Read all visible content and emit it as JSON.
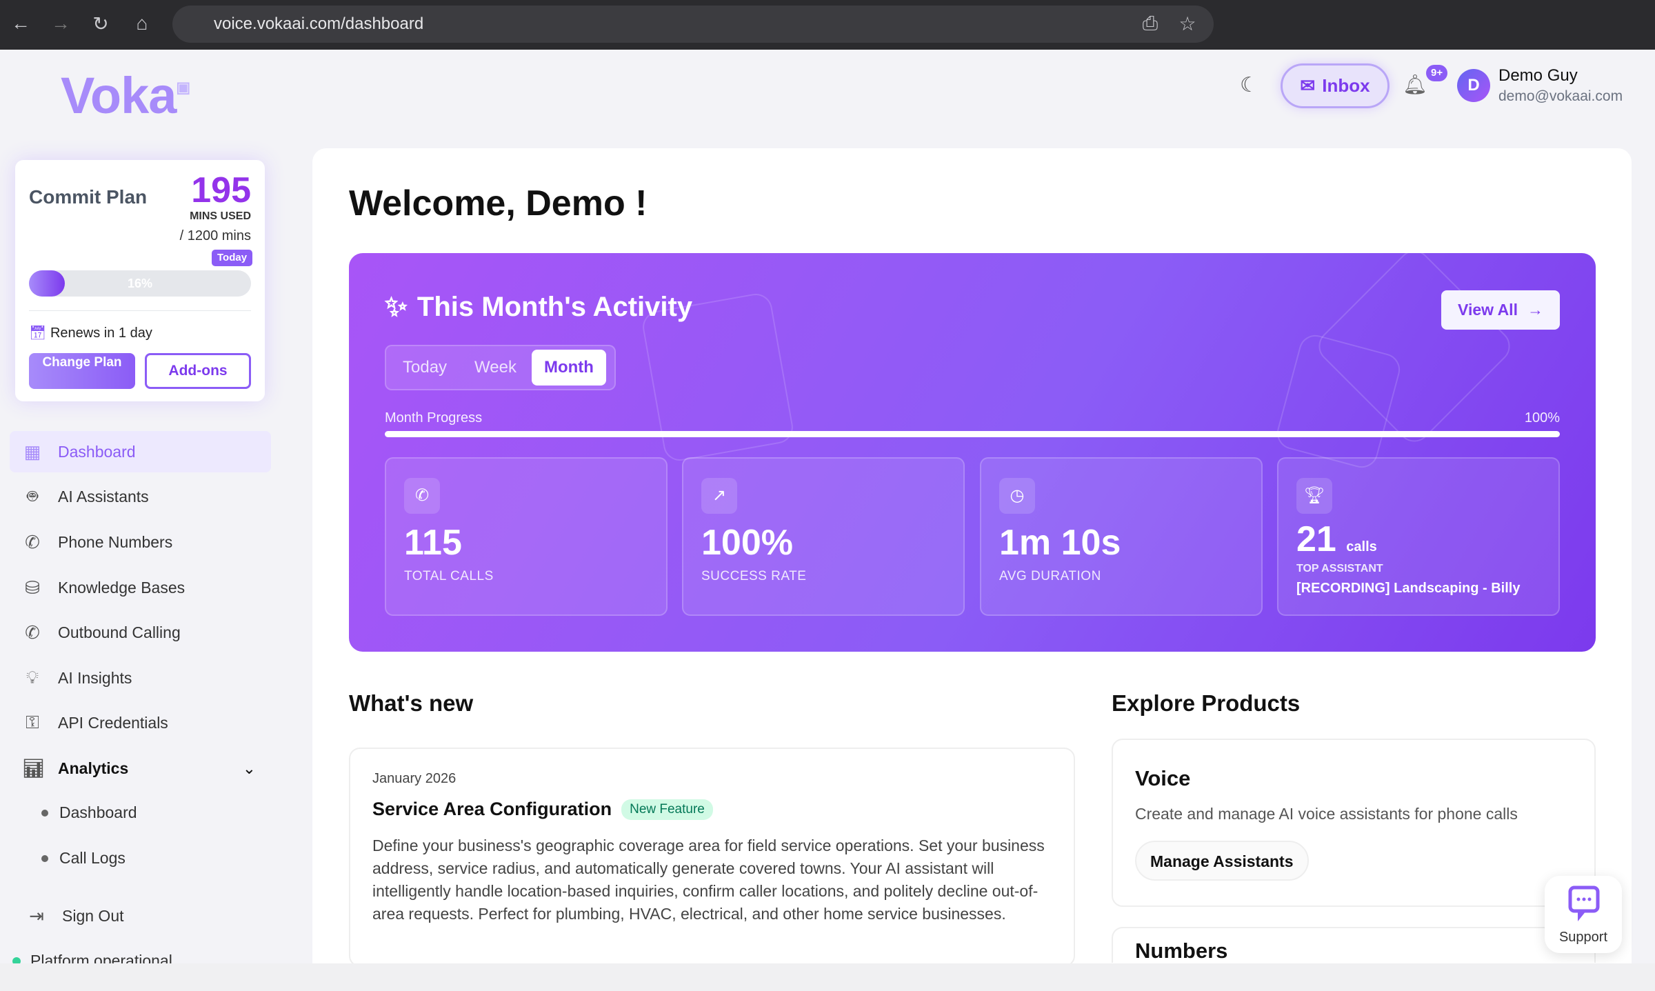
{
  "browser": {
    "url": "voice.vokaai.com/dashboard"
  },
  "brand": {
    "logo": "Voka",
    "accent": "#8b5cf6"
  },
  "header": {
    "inbox_label": "Inbox",
    "notification_badge": "9+",
    "user": {
      "initial": "D",
      "name": "Demo Guy",
      "email": "demo@vokaai.com"
    }
  },
  "plan": {
    "title": "Commit Plan",
    "used": "195",
    "used_label": "MINS USED",
    "total": "/ 1200 mins",
    "today_marker": "Today",
    "progress_percent": 16,
    "progress_label": "16%",
    "renews": "Renews in 1 day",
    "change_label": "Change Plan",
    "addons_label": "Add-ons"
  },
  "sidebar": {
    "items": [
      {
        "label": "Dashboard",
        "icon": "grid-icon",
        "active": true
      },
      {
        "label": "AI Assistants",
        "icon": "bot-icon"
      },
      {
        "label": "Phone Numbers",
        "icon": "phone-icon"
      },
      {
        "label": "Knowledge Bases",
        "icon": "database-icon"
      },
      {
        "label": "Outbound Calling",
        "icon": "phone-outgoing-icon"
      },
      {
        "label": "AI Insights",
        "icon": "lightbulb-icon"
      },
      {
        "label": "API Credentials",
        "icon": "key-icon"
      },
      {
        "label": "Analytics",
        "icon": "bar-chart-icon"
      }
    ],
    "analytics_sub": [
      "Dashboard",
      "Call Logs"
    ],
    "sign_out": "Sign Out",
    "status": "Platform operational"
  },
  "main": {
    "welcome": "Welcome, Demo !",
    "activity": {
      "title": "This Month's Activity",
      "view_all": "View All",
      "tabs": [
        "Today",
        "Week",
        "Month"
      ],
      "active_tab": "Month",
      "progress_label": "Month Progress",
      "progress_value": "100%",
      "stats": [
        {
          "value": "115",
          "label": "TOTAL CALLS",
          "icon": "phone-icon"
        },
        {
          "value": "100%",
          "label": "SUCCESS RATE",
          "icon": "trending-up-icon"
        },
        {
          "value": "1m 10s",
          "label": "AVG DURATION",
          "icon": "clock-icon"
        }
      ],
      "top_assistant": {
        "value": "21",
        "unit": "calls",
        "label": "TOP ASSISTANT",
        "name": "[RECORDING] Landscaping - Billy",
        "icon": "trophy-icon"
      }
    },
    "whats_new": {
      "title": "What's new",
      "date": "January 2026",
      "headline": "Service Area Configuration",
      "badge": "New Feature",
      "body": "Define your business's geographic coverage area for field service operations. Set your business address, service radius, and automatically generate covered towns. Your AI assistant will intelligently handle location-based inquiries, confirm caller locations, and politely decline out-of-area requests. Perfect for plumbing, HVAC, electrical, and other home service businesses."
    },
    "explore": {
      "title": "Explore Products",
      "voice": {
        "title": "Voice",
        "desc": "Create and manage AI voice assistants for phone calls",
        "button": "Manage Assistants"
      },
      "numbers": {
        "title": "Numbers"
      }
    }
  },
  "support": {
    "label": "Support"
  }
}
